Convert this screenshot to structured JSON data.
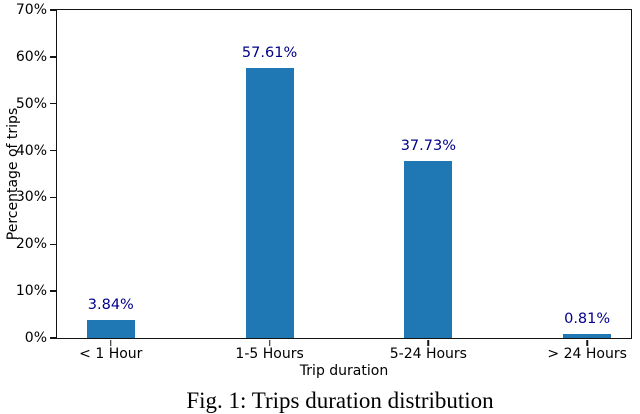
{
  "figure": {
    "caption": "Fig. 1: Trips duration distribution"
  },
  "chart_data": {
    "type": "bar",
    "title": "",
    "categories": [
      "< 1 Hour",
      "1-5 Hours",
      "5-24 Hours",
      "> 24 Hours"
    ],
    "values": [
      3.84,
      57.61,
      37.73,
      0.81
    ],
    "bar_labels": [
      "3.84%",
      "57.61%",
      "37.73%",
      "0.81%"
    ],
    "xlabel": "Trip duration",
    "ylabel": "Percentage of trips",
    "ylim": [
      0,
      70
    ],
    "ytick_values": [
      0,
      10,
      20,
      30,
      40,
      50,
      60,
      70
    ],
    "ytick_labels": [
      "0%",
      "10%",
      "20%",
      "30%",
      "40%",
      "50%",
      "60%",
      "70%"
    ],
    "grid": false,
    "legend_position": "none",
    "colors": {
      "bar": "#1f77b4",
      "bar_label": "#00008b",
      "axis": "#141414",
      "text": "#000000",
      "background": "#ffffff"
    }
  }
}
